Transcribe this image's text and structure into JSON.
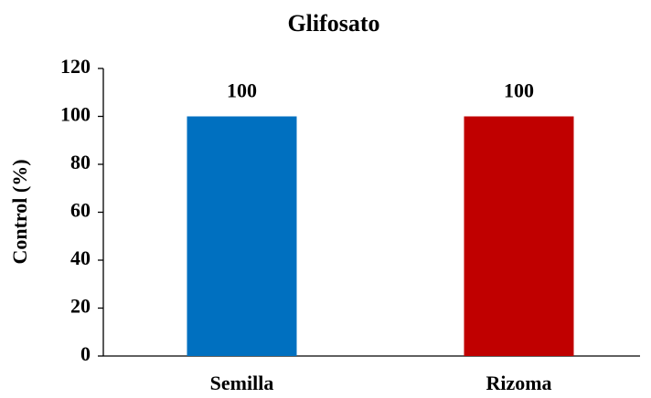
{
  "chart_data": {
    "type": "bar",
    "title": "Glifosato",
    "y_label": "Control (%)",
    "categories": [
      "Semilla",
      "Rizoma"
    ],
    "values": [
      100,
      100
    ],
    "colors": [
      "#0070c0",
      "#c00000"
    ],
    "ylim": [
      0,
      120
    ],
    "yticks": [
      0,
      20,
      40,
      60,
      80,
      100,
      120
    ],
    "grid": false
  }
}
